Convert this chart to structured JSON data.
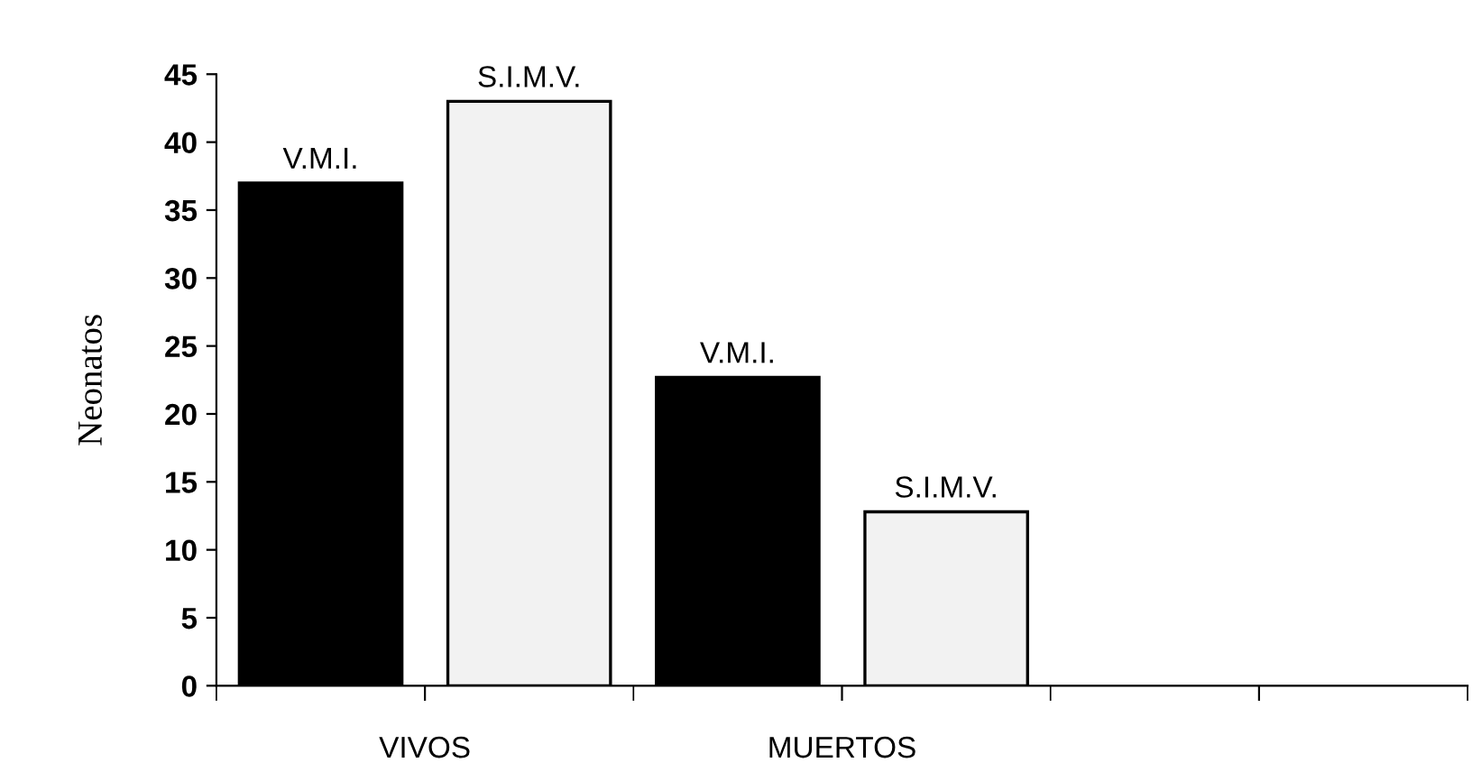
{
  "chart_data": {
    "type": "bar",
    "ylabel": "Neonatos",
    "categories": [
      "VIVOS",
      "MUERTOS",
      null
    ],
    "series": [
      {
        "name": "V.M.I.",
        "color": "#000000",
        "values": [
          37,
          22.7,
          null
        ]
      },
      {
        "name": "S.I.M.V.",
        "color": "#f2f2f2",
        "values": [
          43,
          12.8,
          null
        ]
      }
    ],
    "ylim": [
      0,
      45
    ],
    "yticks": [
      0,
      5,
      10,
      15,
      20,
      25,
      30,
      35,
      40,
      45
    ],
    "grid": false,
    "legend": false
  }
}
